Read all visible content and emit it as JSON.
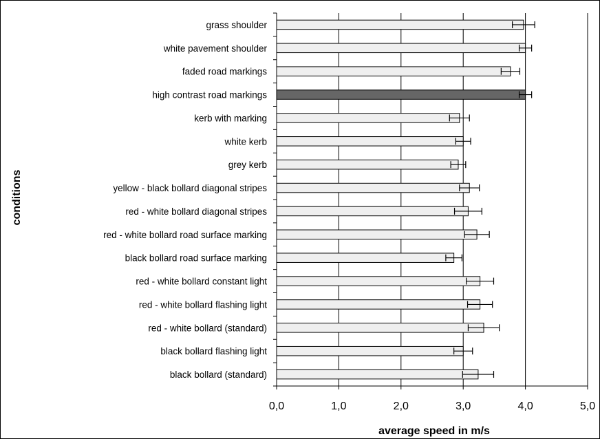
{
  "chart_data": {
    "type": "bar",
    "orientation": "horizontal",
    "title": "",
    "xlabel": "average speed in m/s",
    "ylabel": "conditions",
    "xlim": [
      0,
      5
    ],
    "xticks": [
      "0,0",
      "1,0",
      "2,0",
      "3,0",
      "4,0",
      "5,0"
    ],
    "grid": "vertical gridlines at major ticks",
    "legend": "none",
    "categories": [
      "grass shoulder",
      "white pavement shoulder",
      "faded road markings",
      "high contrast road markings",
      "kerb with marking",
      "white kerb",
      "grey kerb",
      "yellow - black bollard diagonal stripes",
      "red - white bollard diagonal stripes",
      "red - white bollard road surface marking",
      "black bollard road surface marking",
      "red - white bollard constant light",
      "red - white bollard flashing light",
      "red - white bollard (standard)",
      "black bollard flashing light",
      "black bollard (standard)"
    ],
    "values": [
      3.97,
      4.0,
      3.76,
      4.0,
      2.94,
      3.0,
      2.92,
      3.1,
      3.08,
      3.22,
      2.85,
      3.27,
      3.27,
      3.33,
      3.0,
      3.24
    ],
    "error": [
      0.18,
      0.1,
      0.15,
      0.1,
      0.16,
      0.12,
      0.12,
      0.16,
      0.22,
      0.2,
      0.13,
      0.22,
      0.2,
      0.25,
      0.15,
      0.25
    ],
    "highlighted_index": 3,
    "colors": {
      "bar_fill": "#efefef",
      "highlight_fill": "#666666",
      "bar_stroke": "#000000",
      "axis": "#000000"
    }
  }
}
